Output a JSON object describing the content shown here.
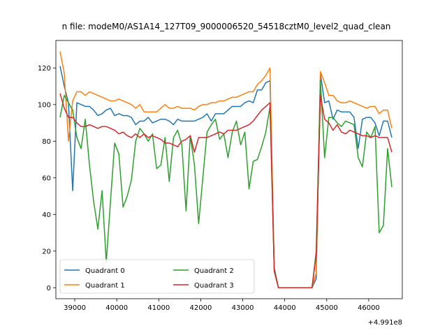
{
  "chart_data": {
    "type": "line",
    "title": "n file: modeM0/AS1A14_127T09_9000006520_54518cztM0_level2_quad_clean",
    "xlabel": "",
    "ylabel": "",
    "x_offset_label": "+4.991e8",
    "xlim": [
      38550,
      46800
    ],
    "ylim": [
      -6,
      135
    ],
    "x_ticks": [
      39000,
      40000,
      41000,
      42000,
      43000,
      44000,
      45000,
      46000
    ],
    "x_tick_labels": [
      "39000",
      "40000",
      "41000",
      "42000",
      "43000",
      "44000",
      "45000",
      "46000"
    ],
    "y_ticks": [
      0,
      20,
      40,
      60,
      80,
      100,
      120
    ],
    "y_tick_labels": [
      "0",
      "20",
      "40",
      "60",
      "80",
      "100",
      "120"
    ],
    "grid": false,
    "legend": {
      "position": "lower-left",
      "columns": 2
    },
    "x": [
      38650,
      38750,
      38850,
      38950,
      39050,
      39150,
      39250,
      39350,
      39450,
      39550,
      39650,
      39750,
      39850,
      39950,
      40050,
      40150,
      40250,
      40350,
      40450,
      40550,
      40650,
      40750,
      40850,
      40950,
      41050,
      41150,
      41250,
      41350,
      41450,
      41550,
      41650,
      41750,
      41850,
      41950,
      42050,
      42150,
      42250,
      42350,
      42450,
      42550,
      42650,
      42750,
      42850,
      42950,
      43050,
      43150,
      43250,
      43350,
      43450,
      43550,
      43650,
      43750,
      43850,
      43950,
      44050,
      44150,
      44250,
      44350,
      44450,
      44550,
      44650,
      44750,
      44850,
      44950,
      45050,
      45150,
      45250,
      45350,
      45450,
      45550,
      45650,
      45750,
      45850,
      45950,
      46050,
      46150,
      46250,
      46350,
      46450,
      46550
    ],
    "series": [
      {
        "name": "Quadrant 0",
        "color": "#1f77b4",
        "values": [
          121,
          110,
          101,
          53,
          101,
          100,
          99,
          99,
          97,
          94,
          95,
          97,
          98,
          94,
          95,
          94,
          94,
          93,
          89,
          91,
          91,
          93,
          90,
          91,
          92,
          92,
          91,
          89,
          92,
          91,
          91,
          91,
          91,
          92,
          93,
          95,
          91,
          95,
          95,
          95,
          97,
          99,
          99,
          99,
          101,
          102,
          101,
          108,
          108,
          112,
          113,
          11,
          0,
          0,
          0,
          0,
          0,
          0,
          0,
          0,
          0,
          5,
          117,
          101,
          102,
          92,
          97,
          96,
          96,
          96,
          93,
          76,
          92,
          93,
          93,
          90,
          83,
          91,
          91,
          82
        ]
      },
      {
        "name": "Quadrant 1",
        "color": "#ff7f0e",
        "values": [
          129,
          117,
          80,
          102,
          107,
          107,
          105,
          107,
          106,
          105,
          104,
          103,
          102,
          102,
          103,
          102,
          101,
          100,
          98,
          100,
          96,
          96,
          96,
          96,
          98,
          100,
          98,
          98,
          99,
          98,
          98,
          98,
          97,
          99,
          100,
          100,
          101,
          101,
          102,
          102,
          103,
          104,
          104,
          105,
          106,
          107,
          107,
          111,
          113,
          116,
          120,
          10,
          0,
          0,
          0,
          0,
          0,
          0,
          0,
          0,
          0,
          8,
          118,
          112,
          105,
          105,
          102,
          101,
          101,
          102,
          101,
          100,
          99,
          98,
          99,
          99,
          95,
          97,
          97,
          87
        ]
      },
      {
        "name": "Quadrant 2",
        "color": "#2ca02c",
        "values": [
          93,
          105,
          101,
          97,
          82,
          76,
          92,
          67,
          47,
          32,
          53,
          14,
          47,
          79,
          73,
          44,
          50,
          59,
          80,
          87,
          84,
          80,
          84,
          65,
          67,
          82,
          58,
          82,
          86,
          78,
          42,
          83,
          67,
          35,
          60,
          85,
          89,
          92,
          81,
          84,
          71,
          85,
          91,
          78,
          85,
          54,
          69,
          70,
          77,
          85,
          99,
          10,
          0,
          0,
          0,
          0,
          0,
          0,
          0,
          0,
          0,
          20,
          113,
          71,
          93,
          93,
          90,
          88,
          91,
          90,
          89,
          71,
          66,
          85,
          82,
          88,
          30,
          34,
          76,
          55
        ]
      },
      {
        "name": "Quadrant 3",
        "color": "#d62728",
        "values": [
          106,
          98,
          93,
          93,
          90,
          88,
          88,
          89,
          88,
          87,
          88,
          88,
          87,
          86,
          84,
          85,
          83,
          82,
          84,
          82,
          84,
          82,
          83,
          82,
          81,
          79,
          79,
          78,
          77,
          80,
          81,
          83,
          74,
          82,
          82,
          82,
          83,
          84,
          85,
          84,
          86,
          86,
          86,
          87,
          88,
          89,
          91,
          94,
          97,
          99,
          101,
          9,
          0,
          0,
          0,
          0,
          0,
          0,
          0,
          0,
          0,
          18,
          105,
          92,
          90,
          86,
          89,
          85,
          84,
          86,
          85,
          84,
          83,
          83,
          82,
          83,
          82,
          82,
          82,
          74
        ]
      }
    ]
  }
}
